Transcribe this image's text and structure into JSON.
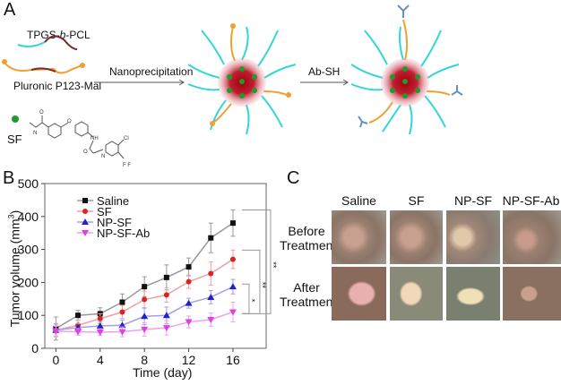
{
  "panel_a": {
    "label": "A",
    "polymer1": "TPGS-b-PCL",
    "polymer1_prefix": "TPGS-",
    "polymer1_italic": "b",
    "polymer1_suffix": "-PCL",
    "polymer2": "Pluronic P123-Mal",
    "drug": "SF",
    "step1": "Nanoprecipitation",
    "step2": "Ab-SH",
    "structure_atoms": [
      "O",
      "N",
      "H",
      "N",
      "O",
      "NH",
      "O",
      "N",
      "H",
      "Cl",
      "F",
      "F",
      "F"
    ],
    "colors": {
      "peg": "#33d6d6",
      "pcl": "#7a2a2a",
      "pluronic": "#f0a030",
      "core": "#b00010",
      "drug": "#1e9a2e",
      "antibody": "#6a8fc0"
    }
  },
  "panel_b": {
    "label": "B"
  },
  "chart_data": {
    "type": "line",
    "xlabel": "Time (day)",
    "ylabel": "Tumor volume (mm³)",
    "ylabel_main": "Tumor volume (mm",
    "ylabel_sup": "3",
    "ylabel_end": ")",
    "xlim": [
      -1,
      19
    ],
    "ylim": [
      0,
      500
    ],
    "xticks": [
      0,
      4,
      8,
      12,
      16
    ],
    "yticks": [
      0,
      100,
      200,
      300,
      400,
      500
    ],
    "x": [
      0,
      2,
      4,
      6,
      8,
      10,
      12,
      14,
      16
    ],
    "legend_position": "top-left",
    "series": [
      {
        "name": "Saline",
        "marker": "square",
        "color": "#111111",
        "line_color": "#999999",
        "values": [
          60,
          100,
          105,
          140,
          187,
          215,
          247,
          335,
          380
        ],
        "errors": [
          35,
          15,
          18,
          25,
          30,
          38,
          27,
          45,
          40
        ]
      },
      {
        "name": "SF",
        "marker": "circle",
        "color": "#dd2222",
        "line_color": "#f0a0a0",
        "values": [
          55,
          70,
          90,
          110,
          148,
          162,
          202,
          227,
          270
        ],
        "errors": [
          20,
          15,
          15,
          20,
          25,
          22,
          20,
          35,
          28
        ]
      },
      {
        "name": "NP-SF",
        "marker": "triangle-up",
        "color": "#2222cc",
        "line_color": "#a0a0e8",
        "values": [
          55,
          63,
          68,
          70,
          97,
          100,
          137,
          155,
          187
        ],
        "errors": [
          18,
          12,
          12,
          15,
          25,
          25,
          15,
          20,
          22
        ]
      },
      {
        "name": "NP-SF-Ab",
        "marker": "triangle-down",
        "color": "#e040e0",
        "line_color": "#f0a0f0",
        "values": [
          52,
          50,
          49,
          50,
          57,
          62,
          80,
          87,
          110
        ],
        "errors": [
          15,
          10,
          10,
          15,
          20,
          22,
          18,
          20,
          30
        ]
      }
    ],
    "significance": [
      {
        "from": "NP-SF-Ab",
        "to": "NP-SF",
        "label": "*"
      },
      {
        "from": "NP-SF-Ab",
        "to": "SF",
        "label": "**"
      },
      {
        "from": "NP-SF-Ab",
        "to": "Saline",
        "label": "**"
      }
    ]
  },
  "panel_c": {
    "label": "C",
    "columns": [
      "Saline",
      "SF",
      "NP-SF",
      "NP-SF-Ab"
    ],
    "rows": [
      {
        "line1": "Before",
        "line2": "Treatment"
      },
      {
        "line1": "After",
        "line2": "Treatment"
      }
    ]
  }
}
